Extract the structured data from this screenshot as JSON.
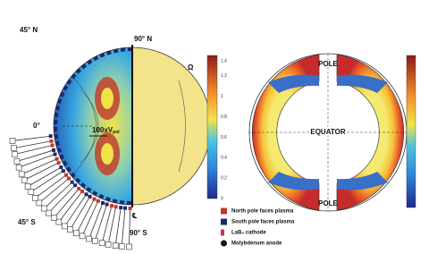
{
  "left_figure": {
    "labels": {
      "north45": "45° N",
      "north90": "90° N",
      "omega": "Ω",
      "equator0": "0°",
      "velocity": "100xV",
      "velocity_sub": "pol",
      "south45": "45° S",
      "south90": "90° S",
      "centerline": "℄"
    },
    "colorbar": {
      "ticks": [
        "0",
        "0.2",
        "0.4",
        "0.6",
        "0.8",
        "1",
        "1.2",
        "1.4"
      ]
    },
    "legend": {
      "items": [
        "North pole faces plasma",
        "South pole faces plasma",
        "LaB₆ cathode",
        "Molybdenum anode"
      ]
    }
  },
  "right_figure": {
    "labels": {
      "pole_top": "POLE",
      "equator": "EQUATOR",
      "pole_bottom": "POLE"
    }
  }
}
